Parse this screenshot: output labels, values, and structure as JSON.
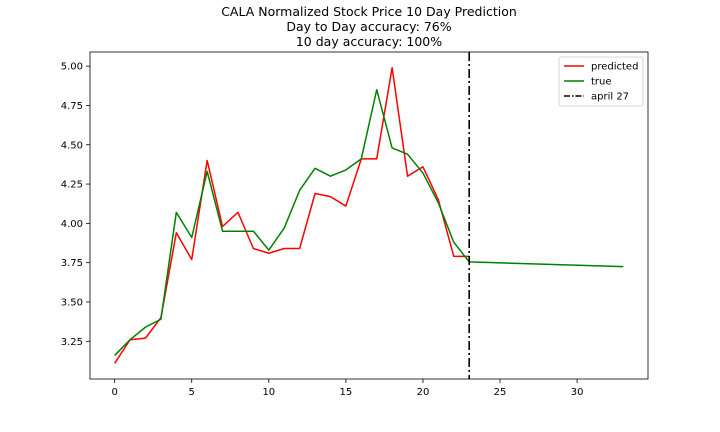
{
  "chart_data": {
    "type": "line",
    "title_lines": [
      "CALA Normalized Stock Price 10 Day Prediction",
      "Day to Day accuracy: 76%",
      "10 day accuracy: 100%"
    ],
    "xlabel": "",
    "ylabel": "",
    "xlim": [
      -1.6,
      34.6
    ],
    "ylim": [
      3.01,
      5.09
    ],
    "x_ticks": [
      0,
      5,
      10,
      15,
      20,
      25,
      30
    ],
    "y_ticks": [
      3.25,
      3.5,
      3.75,
      4.0,
      4.25,
      4.5,
      4.75,
      5.0
    ],
    "x_tick_labels": [
      "0",
      "5",
      "10",
      "15",
      "20",
      "25",
      "30"
    ],
    "y_tick_labels": [
      "3.25",
      "3.50",
      "3.75",
      "4.00",
      "4.25",
      "4.50",
      "4.75",
      "5.00"
    ],
    "grid": false,
    "legend_position": "top-right",
    "series": [
      {
        "name": "predicted",
        "color": "#ff0000",
        "x": [
          0,
          1,
          2,
          3,
          4,
          5,
          6,
          7,
          8,
          9,
          10,
          11,
          12,
          13,
          14,
          15,
          16,
          17,
          18,
          19,
          20,
          21,
          22,
          23
        ],
        "y": [
          3.11,
          3.26,
          3.27,
          3.4,
          3.94,
          3.77,
          4.4,
          3.98,
          4.07,
          3.84,
          3.81,
          3.84,
          3.84,
          4.19,
          4.17,
          4.11,
          4.41,
          4.41,
          4.99,
          4.3,
          4.36,
          4.15,
          3.79,
          3.79
        ]
      },
      {
        "name": "true",
        "color": "#008000",
        "x": [
          0,
          1,
          2,
          3,
          4,
          5,
          6,
          7,
          8,
          9,
          10,
          11,
          12,
          13,
          14,
          15,
          16,
          17,
          18,
          19,
          20,
          21,
          22,
          23,
          33
        ],
        "y": [
          3.16,
          3.26,
          3.34,
          3.39,
          4.07,
          3.91,
          4.33,
          3.95,
          3.95,
          3.95,
          3.83,
          3.97,
          4.21,
          4.35,
          4.3,
          4.34,
          4.41,
          4.85,
          4.48,
          4.44,
          4.32,
          4.13,
          3.88,
          3.755,
          3.725
        ]
      }
    ],
    "vline": {
      "name": "april 27",
      "x": 23,
      "color": "#000000",
      "style": "dash-dot"
    }
  }
}
